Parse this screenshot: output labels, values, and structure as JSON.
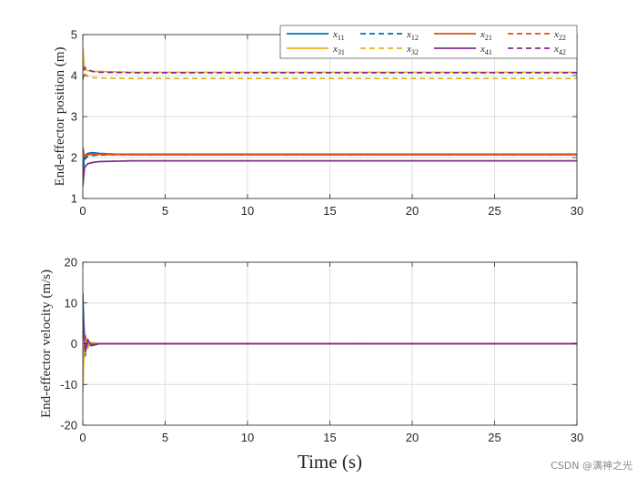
{
  "colors": {
    "x11": "#0072BD",
    "x12": "#0072BD",
    "x21": "#D95319",
    "x22": "#D95319",
    "x31": "#EDB120",
    "x32": "#EDB120",
    "x41": "#7E2F8E",
    "x42": "#7E2F8E",
    "grid": "#dedede",
    "axis": "#262626"
  },
  "legend": {
    "entries": [
      {
        "key": "x11",
        "base": "x",
        "sub": "11",
        "dashed": false
      },
      {
        "key": "x12",
        "base": "x",
        "sub": "12",
        "dashed": true
      },
      {
        "key": "x21",
        "base": "x",
        "sub": "21",
        "dashed": false
      },
      {
        "key": "x22",
        "base": "x",
        "sub": "22",
        "dashed": true
      },
      {
        "key": "x31",
        "base": "x",
        "sub": "31",
        "dashed": false
      },
      {
        "key": "x32",
        "base": "x",
        "sub": "32",
        "dashed": true
      },
      {
        "key": "x41",
        "base": "x",
        "sub": "41",
        "dashed": false
      },
      {
        "key": "x42",
        "base": "x",
        "sub": "42",
        "dashed": true
      }
    ]
  },
  "watermark": "CSDN @满神之光",
  "chart_data": [
    {
      "type": "line",
      "title": "",
      "xlabel": "",
      "ylabel": "End-effector position (m)",
      "xlim": [
        0,
        30
      ],
      "ylim": [
        1,
        5
      ],
      "xticks": [
        0,
        5,
        10,
        15,
        20,
        25,
        30
      ],
      "yticks": [
        1,
        2,
        3,
        4,
        5
      ],
      "grid": true,
      "legend_position": "top-right",
      "series": [
        {
          "name": "x11",
          "dashed": false,
          "x": [
            0,
            0.1,
            0.3,
            0.6,
            1,
            2,
            30
          ],
          "y": [
            1.6,
            2.05,
            2.1,
            2.12,
            2.1,
            2.08,
            2.08
          ]
        },
        {
          "name": "x12",
          "dashed": true,
          "x": [
            0,
            0.1,
            0.3,
            0.6,
            1,
            2,
            30
          ],
          "y": [
            1.5,
            1.95,
            2.03,
            2.05,
            2.06,
            2.07,
            2.07
          ]
        },
        {
          "name": "x21",
          "dashed": false,
          "x": [
            0,
            0.1,
            0.3,
            0.6,
            1,
            3,
            30
          ],
          "y": [
            2.2,
            2.02,
            2.07,
            2.08,
            2.08,
            2.07,
            2.07
          ]
        },
        {
          "name": "x22",
          "dashed": true,
          "x": [
            0,
            0.1,
            0.3,
            0.6,
            1,
            3,
            30
          ],
          "y": [
            2.25,
            2.05,
            2.07,
            2.07,
            2.07,
            2.07,
            2.07
          ]
        },
        {
          "name": "x31",
          "dashed": false,
          "x": [
            0,
            0.1,
            0.3,
            0.6,
            1,
            3,
            30
          ],
          "y": [
            4.7,
            4.15,
            4.12,
            4.1,
            4.1,
            4.08,
            4.08
          ]
        },
        {
          "name": "x32",
          "dashed": true,
          "x": [
            0,
            0.1,
            0.3,
            0.6,
            1,
            3,
            30
          ],
          "y": [
            4.5,
            4.05,
            3.98,
            3.95,
            3.94,
            3.93,
            3.93
          ]
        },
        {
          "name": "x41",
          "dashed": false,
          "x": [
            0,
            0.1,
            0.3,
            0.6,
            1,
            3,
            30
          ],
          "y": [
            1.3,
            1.75,
            1.85,
            1.88,
            1.9,
            1.92,
            1.92
          ]
        },
        {
          "name": "x42",
          "dashed": true,
          "x": [
            0,
            0.1,
            0.3,
            0.6,
            1,
            3,
            30
          ],
          "y": [
            3.9,
            4.2,
            4.15,
            4.1,
            4.08,
            4.07,
            4.07
          ]
        }
      ]
    },
    {
      "type": "line",
      "title": "",
      "xlabel": "Time (s)",
      "ylabel": "End-effector velocity (m/s)",
      "xlim": [
        0,
        30
      ],
      "ylim": [
        -20,
        20
      ],
      "xticks": [
        0,
        5,
        10,
        15,
        20,
        25,
        30
      ],
      "yticks": [
        -20,
        -10,
        0,
        10,
        20
      ],
      "grid": true,
      "series": [
        {
          "name": "x11",
          "dashed": false,
          "x": [
            0,
            0.05,
            0.15,
            0.3,
            0.5,
            1,
            30
          ],
          "y": [
            12.5,
            6,
            -2,
            1,
            -0.5,
            0,
            0
          ]
        },
        {
          "name": "x12",
          "dashed": true,
          "x": [
            0,
            0.05,
            0.15,
            0.3,
            0.5,
            1,
            30
          ],
          "y": [
            11,
            4,
            -3,
            1,
            -0.4,
            0,
            0
          ]
        },
        {
          "name": "x21",
          "dashed": false,
          "x": [
            0,
            0.05,
            0.15,
            0.3,
            0.5,
            1,
            30
          ],
          "y": [
            -9,
            -3,
            2,
            -1,
            0.3,
            0,
            0
          ]
        },
        {
          "name": "x22",
          "dashed": true,
          "x": [
            0,
            0.05,
            0.15,
            0.3,
            0.5,
            1,
            30
          ],
          "y": [
            -8,
            -2,
            1.5,
            -0.5,
            0.2,
            0,
            0
          ]
        },
        {
          "name": "x31",
          "dashed": false,
          "x": [
            0,
            0.05,
            0.15,
            0.3,
            0.5,
            1,
            30
          ],
          "y": [
            -12,
            -5,
            1,
            -1,
            0.3,
            0,
            0
          ]
        },
        {
          "name": "x32",
          "dashed": true,
          "x": [
            0,
            0.05,
            0.15,
            0.3,
            0.5,
            1,
            30
          ],
          "y": [
            -10,
            -4,
            1,
            -0.8,
            0.2,
            0,
            0
          ]
        },
        {
          "name": "x41",
          "dashed": false,
          "x": [
            0,
            0.05,
            0.15,
            0.3,
            0.5,
            1,
            30
          ],
          "y": [
            9,
            3,
            -2,
            0.8,
            -0.3,
            0,
            0
          ]
        },
        {
          "name": "x42",
          "dashed": true,
          "x": [
            0,
            0.05,
            0.15,
            0.3,
            0.5,
            1,
            30
          ],
          "y": [
            7,
            2,
            -1.5,
            0.5,
            -0.2,
            0,
            0
          ]
        }
      ]
    }
  ]
}
